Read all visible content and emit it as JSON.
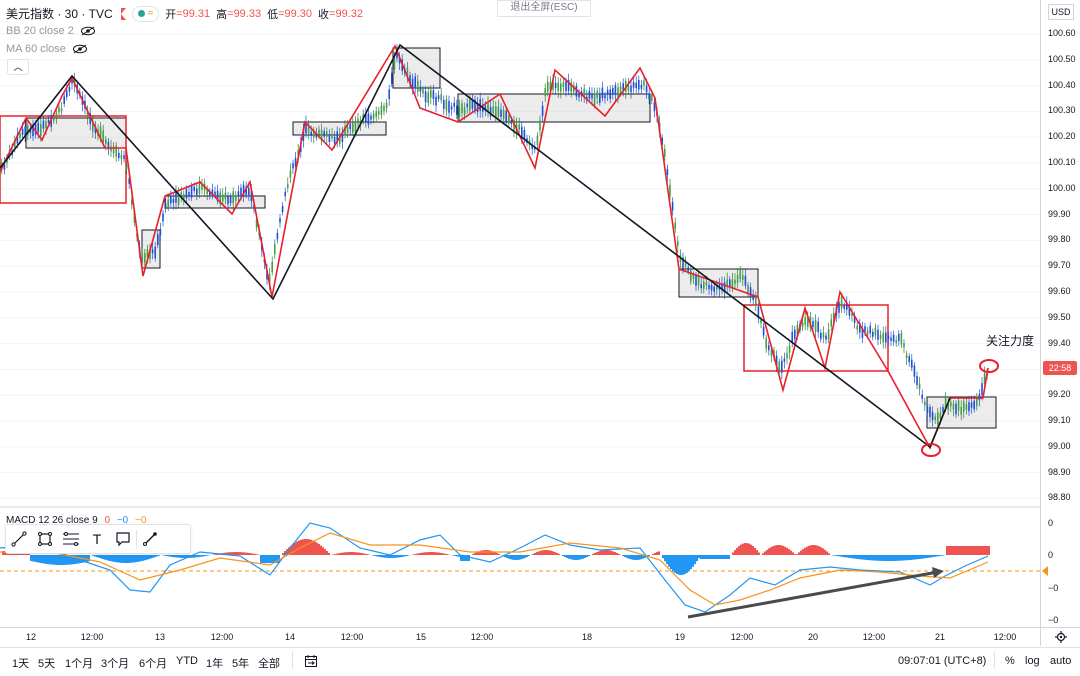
{
  "header": {
    "symbol_title": "美元指数 · 30 · TVC",
    "exit_fullscreen": "退出全屏(ESC)",
    "ohlc": {
      "open_label": "开",
      "open_value": "=99.31",
      "high_label": "高",
      "high_value": "=99.33",
      "low_label": "低",
      "low_value": "=99.30",
      "close_label": "收",
      "close_value": "=99.32"
    },
    "indicators": [
      "BB 20 close 2",
      "MA 60 close"
    ],
    "collapse_icon": "chevron-up-icon"
  },
  "price_axis": {
    "currency": "USD",
    "ticks": [
      "100.60",
      "100.50",
      "100.40",
      "100.30",
      "100.20",
      "100.10",
      "100.00",
      "99.90",
      "99.80",
      "99.70",
      "99.60",
      "99.50",
      "99.40",
      "99.30",
      "99.20",
      "99.10",
      "99.00",
      "98.90",
      "98.80"
    ],
    "current_price_tag": "22:58"
  },
  "macd": {
    "legend": "MACD 12 26 close 9",
    "legend_values": [
      "0",
      "−0",
      "−0"
    ],
    "ticks": [
      "0",
      "0",
      "−0",
      "−0"
    ]
  },
  "annotation": {
    "text": "关注力度"
  },
  "time_axis": {
    "ticks": [
      "12",
      "12:00",
      "13",
      "12:00",
      "14",
      "12:00",
      "15",
      "12:00",
      "18",
      "12:00",
      "19",
      "12:00",
      "20",
      "12:00",
      "21",
      "12:00"
    ]
  },
  "bottom_bar": {
    "ranges": [
      "1天",
      "5天",
      "1个月",
      "3个月",
      "6个月",
      "YTD",
      "1年",
      "5年",
      "全部"
    ],
    "clock": "09:07:01 (UTC+8)",
    "percent": "%",
    "log": "log",
    "auto": "auto"
  },
  "drawing_toolbar": {
    "tools": [
      "trend-line-icon",
      "rectangle-icon",
      "fib-icon",
      "text-icon",
      "callout-icon",
      "brush-icon"
    ],
    "text_tool_glyph": "T"
  },
  "colors": {
    "up": "#26a69a",
    "down": "#1e4fd6",
    "accent_red": "#e8202a",
    "macd_pos": "#ef5350",
    "macd_neg": "#2196f3",
    "signal": "#f7941d"
  }
}
